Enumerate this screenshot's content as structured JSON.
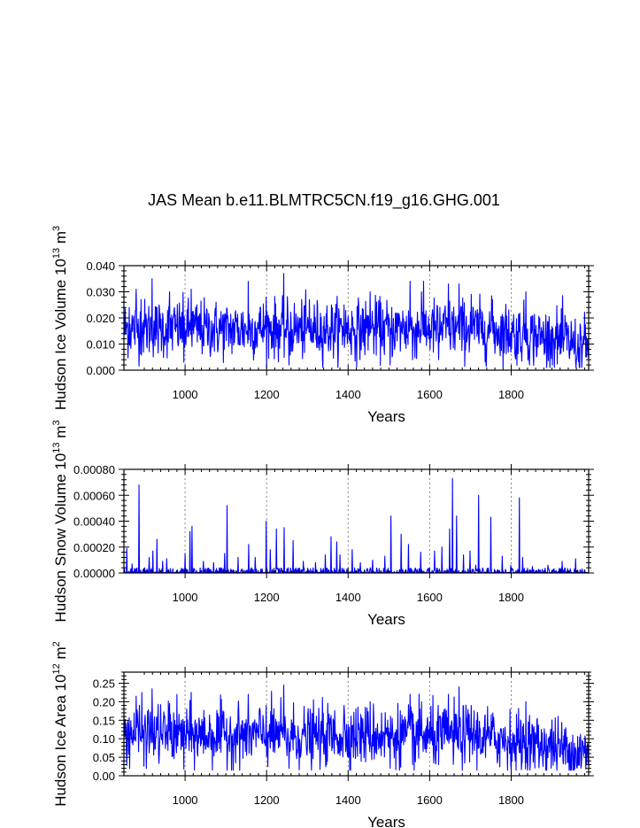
{
  "figure_title": "JAS Mean b.e11.BLMTRC5CN.f19_g16.GHG.001",
  "line_color": "#0000ff",
  "chart_data": [
    {
      "type": "line",
      "ylabel_main": "Hudson Ice Volume 10",
      "ylabel_exp": "13",
      "ylabel_unit": " m",
      "ylabel_unit_exp": "3",
      "xlabel": "Years",
      "xlim": [
        850,
        1990
      ],
      "ylim": [
        0.0,
        0.04
      ],
      "x_ticks": [
        "1000",
        "1200",
        "1400",
        "1600",
        "1800"
      ],
      "y_ticks": [
        "0.000",
        "0.010",
        "0.020",
        "0.030",
        "0.040"
      ],
      "gridlines_x": [
        1000,
        1200,
        1400,
        1600,
        1800
      ],
      "series": [
        {
          "x_start": 850,
          "x_end": 1990,
          "mean": 0.0155,
          "sd": 0.0055,
          "min": 0.001,
          "max": 0.037,
          "anchors": [
            [
              850,
              0.016
            ],
            [
              900,
              0.016
            ],
            [
              1000,
              0.016
            ],
            [
              1100,
              0.0155
            ],
            [
              1200,
              0.016
            ],
            [
              1300,
              0.0155
            ],
            [
              1400,
              0.0155
            ],
            [
              1500,
              0.016
            ],
            [
              1600,
              0.016
            ],
            [
              1700,
              0.016
            ],
            [
              1800,
              0.0145
            ],
            [
              1900,
              0.012
            ],
            [
              1990,
              0.009
            ]
          ],
          "peaks": [
            [
              863,
              0.024
            ],
            [
              880,
              0.031
            ],
            [
              892,
              0.027
            ],
            [
              919,
              0.035
            ],
            [
              962,
              0.03
            ],
            [
              1015,
              0.031
            ],
            [
              1155,
              0.034
            ],
            [
              1199,
              0.028
            ],
            [
              1242,
              0.037
            ],
            [
              1305,
              0.027
            ],
            [
              1390,
              0.025
            ],
            [
              1454,
              0.03
            ],
            [
              1552,
              0.034
            ],
            [
              1580,
              0.03
            ],
            [
              1646,
              0.033
            ],
            [
              1672,
              0.033
            ],
            [
              1702,
              0.029
            ],
            [
              1754,
              0.027
            ],
            [
              1836,
              0.03
            ],
            [
              1932,
              0.021
            ]
          ],
          "troughs": [
            [
              997,
              0.003
            ],
            [
              1255,
              0.002
            ],
            [
              1503,
              0.002
            ],
            [
              1558,
              0.004
            ],
            [
              1622,
              0.004
            ],
            [
              1810,
              0.005
            ],
            [
              1960,
              0.004
            ],
            [
              1985,
              0.005
            ]
          ]
        }
      ]
    },
    {
      "type": "line",
      "ylabel_main": "Hudson Snow Volume 10",
      "ylabel_exp": "13",
      "ylabel_unit": " m",
      "ylabel_unit_exp": "3",
      "xlabel": "Years",
      "xlim": [
        850,
        1990
      ],
      "ylim": [
        0.0,
        0.0008
      ],
      "x_ticks": [
        "1000",
        "1200",
        "1400",
        "1600",
        "1800"
      ],
      "y_ticks": [
        "0.00000",
        "0.00020",
        "0.00040",
        "0.00060",
        "0.00080"
      ],
      "gridlines_x": [
        1000,
        1200,
        1400,
        1600,
        1800
      ],
      "series": [
        {
          "x_start": 850,
          "x_end": 1990,
          "baseline_max": 4e-05,
          "spikes": [
            [
              857,
              0.00019
            ],
            [
              870,
              7e-05
            ],
            [
              887,
              0.00068
            ],
            [
              912,
              0.00012
            ],
            [
              921,
              0.00017
            ],
            [
              931,
              0.00026
            ],
            [
              945,
              9e-05
            ],
            [
              955,
              0.00011
            ],
            [
              1000,
              0.00015
            ],
            [
              1012,
              0.00032
            ],
            [
              1017,
              0.00036
            ],
            [
              1045,
              9e-05
            ],
            [
              1070,
              8e-05
            ],
            [
              1097,
              0.00015
            ],
            [
              1103,
              0.00052
            ],
            [
              1130,
              0.00012
            ],
            [
              1156,
              0.00022
            ],
            [
              1172,
              0.00012
            ],
            [
              1199,
              0.0004
            ],
            [
              1209,
              0.00018
            ],
            [
              1224,
              0.00034
            ],
            [
              1243,
              0.00035
            ],
            [
              1265,
              0.00025
            ],
            [
              1290,
              9e-05
            ],
            [
              1320,
              8e-05
            ],
            [
              1344,
              0.00014
            ],
            [
              1358,
              0.00028
            ],
            [
              1372,
              0.00024
            ],
            [
              1380,
              0.00014
            ],
            [
              1410,
              0.00018
            ],
            [
              1430,
              8e-05
            ],
            [
              1460,
              0.0001
            ],
            [
              1490,
              0.00013
            ],
            [
              1505,
              0.00044
            ],
            [
              1530,
              0.0003
            ],
            [
              1548,
              0.00022
            ],
            [
              1578,
              0.00016
            ],
            [
              1612,
              0.00017
            ],
            [
              1630,
              0.0002
            ],
            [
              1649,
              0.00034
            ],
            [
              1656,
              0.00073
            ],
            [
              1666,
              0.00044
            ],
            [
              1683,
              0.00014
            ],
            [
              1699,
              0.00017
            ],
            [
              1713,
              6e-05
            ],
            [
              1720,
              0.0006
            ],
            [
              1750,
              0.00043
            ],
            [
              1778,
              0.00013
            ],
            [
              1799,
              6e-05
            ],
            [
              1820,
              0.00058
            ],
            [
              1828,
              0.00012
            ],
            [
              1852,
              5e-05
            ],
            [
              1890,
              6e-05
            ],
            [
              1925,
              9e-05
            ],
            [
              1958,
              0.00011
            ]
          ]
        }
      ]
    },
    {
      "type": "line",
      "ylabel_main": "Hudson Ice Area 10",
      "ylabel_exp": "12",
      "ylabel_unit": " m",
      "ylabel_unit_exp": "2",
      "xlabel": "Years",
      "xlim": [
        850,
        1990
      ],
      "ylim": [
        0.0,
        0.28
      ],
      "x_ticks": [
        "1000",
        "1200",
        "1400",
        "1600",
        "1800"
      ],
      "y_ticks": [
        "0.00",
        "0.05",
        "0.10",
        "0.15",
        "0.20",
        "0.25"
      ],
      "gridlines_x": [
        1000,
        1200,
        1400,
        1600,
        1800
      ],
      "series": [
        {
          "x_start": 850,
          "x_end": 1990,
          "mean": 0.11,
          "sd": 0.04,
          "min": 0.015,
          "max": 0.245,
          "anchors": [
            [
              850,
              0.115
            ],
            [
              900,
              0.115
            ],
            [
              1000,
              0.11
            ],
            [
              1100,
              0.11
            ],
            [
              1200,
              0.11
            ],
            [
              1300,
              0.105
            ],
            [
              1400,
              0.11
            ],
            [
              1500,
              0.11
            ],
            [
              1600,
              0.105
            ],
            [
              1700,
              0.11
            ],
            [
              1800,
              0.095
            ],
            [
              1900,
              0.08
            ],
            [
              1990,
              0.055
            ]
          ],
          "peaks": [
            [
              880,
              0.215
            ],
            [
              919,
              0.235
            ],
            [
              962,
              0.195
            ],
            [
              1015,
              0.225
            ],
            [
              1155,
              0.22
            ],
            [
              1199,
              0.19
            ],
            [
              1242,
              0.245
            ],
            [
              1390,
              0.19
            ],
            [
              1454,
              0.2
            ],
            [
              1552,
              0.22
            ],
            [
              1580,
              0.2
            ],
            [
              1646,
              0.22
            ],
            [
              1672,
              0.24
            ],
            [
              1702,
              0.19
            ],
            [
              1836,
              0.2
            ]
          ],
          "troughs": [
            [
              997,
              0.018
            ],
            [
              1255,
              0.02
            ],
            [
              1503,
              0.02
            ],
            [
              1558,
              0.03
            ],
            [
              1622,
              0.03
            ],
            [
              1810,
              0.04
            ],
            [
              1960,
              0.03
            ],
            [
              1985,
              0.03
            ]
          ]
        }
      ]
    }
  ]
}
